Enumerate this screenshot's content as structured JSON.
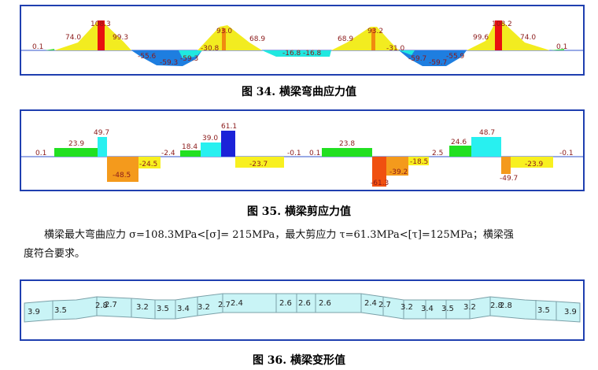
{
  "figure34": {
    "caption": "图 34. 横梁弯曲应力值",
    "labels": [
      "0.1",
      "74.0",
      "108.3",
      "99.3",
      "-55.6",
      "-59.3",
      "-59.3",
      "-30.8",
      "93.0",
      "68.9",
      "-16.8",
      "-16.8",
      "68.9",
      "93.2",
      "-31.0",
      "-59.7",
      "-59.7",
      "-55.9",
      "99.6",
      "108.2",
      "74.0",
      "0.1"
    ],
    "colors": {
      "tension": "#f2ec20",
      "peak": "#e81010",
      "mid": "#f08a10",
      "compression": "#1e7ee0",
      "transition": "#20e8e0",
      "low": "#44dd44"
    }
  },
  "figure35": {
    "caption": "图 35. 横梁剪应力值",
    "labels": [
      "0.1",
      "23.9",
      "49.7",
      "-48.5",
      "-24.5",
      "-2.4",
      "18.4",
      "39.0",
      "61.1",
      "-23.7",
      "-0.1",
      "0.1",
      "23.8",
      "-61.3",
      "-39.2",
      "-18.5",
      "2.5",
      "24.6",
      "48.7",
      "-49.7",
      "-23.9",
      "-0.1"
    ],
    "colors": {
      "green": "#22e022",
      "cyan": "#28f0f0",
      "orange": "#f49a1c",
      "yellow": "#f8f020",
      "blue": "#1b22d8",
      "red": "#f05010"
    }
  },
  "text": {
    "para_line1": "横梁最大弯曲应力 σ=108.3MPa<[σ]= 215MPa，最大剪应力 τ=61.3MPa<[τ]=125MPa；横梁强",
    "para_line2": "度符合要求。"
  },
  "figure36": {
    "caption": "图 36. 横梁变形值",
    "labels": [
      "3.9",
      "3.5",
      "2.8",
      "2.7",
      "3.2",
      "3.5",
      "3.4",
      "3.2",
      "2.7",
      "2.4",
      "2.6",
      "2.6",
      "2.6",
      "2.4",
      "2.7",
      "3.2",
      "3.4",
      "3.5",
      "3.2",
      "2.8",
      "2.8",
      "3.5",
      "3.9"
    ],
    "fill_color": "#c9f4f6"
  }
}
